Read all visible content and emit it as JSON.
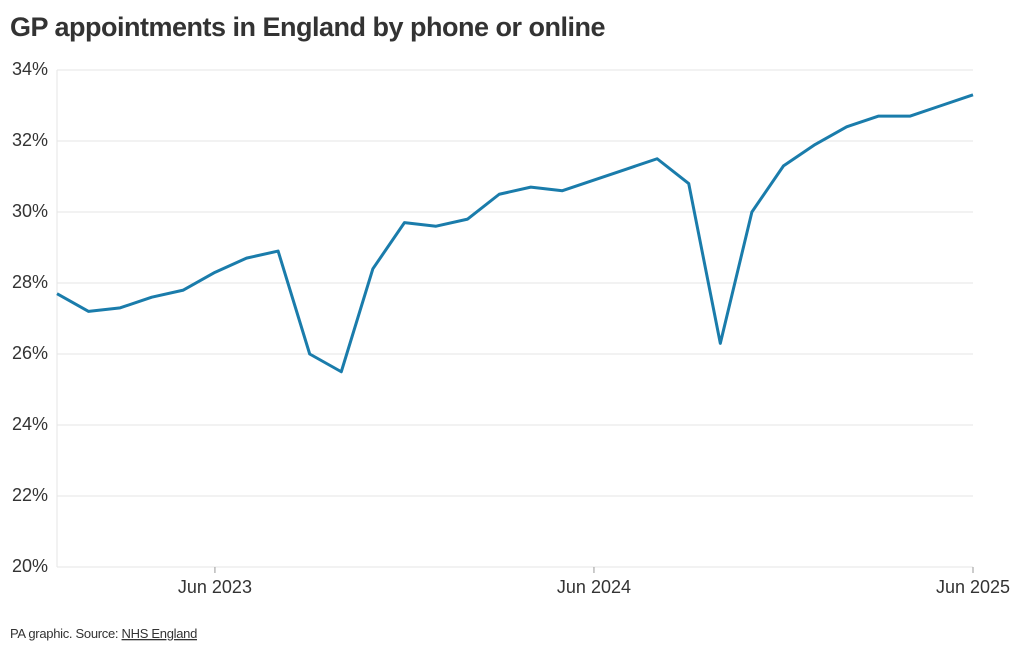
{
  "chart_data": {
    "type": "line",
    "title": "GP appointments in England by phone or online",
    "x": [
      "2023-01",
      "2023-02",
      "2023-03",
      "2023-04",
      "2023-05",
      "2023-06",
      "2023-07",
      "2023-08",
      "2023-09",
      "2023-10",
      "2023-11",
      "2023-12",
      "2024-01",
      "2024-02",
      "2024-03",
      "2024-04",
      "2024-05",
      "2024-06",
      "2024-07",
      "2024-08",
      "2024-09",
      "2024-10",
      "2024-11",
      "2024-12",
      "2025-01",
      "2025-02",
      "2025-03",
      "2025-04",
      "2025-05",
      "2025-06"
    ],
    "series": [
      {
        "name": "Phone or online",
        "color": "#1a7cab",
        "values": [
          27.7,
          27.2,
          27.3,
          27.6,
          27.8,
          28.3,
          28.7,
          28.9,
          26.0,
          25.5,
          28.4,
          29.7,
          29.6,
          29.8,
          30.5,
          30.7,
          30.6,
          30.9,
          31.2,
          31.5,
          30.8,
          26.3,
          30.0,
          31.3,
          31.9,
          32.4,
          32.7,
          32.7,
          33.0,
          33.3
        ]
      }
    ],
    "ylim": [
      20,
      34
    ],
    "yticks": [
      {
        "value": 20,
        "label": "20%"
      },
      {
        "value": 22,
        "label": "22%"
      },
      {
        "value": 24,
        "label": "24%"
      },
      {
        "value": 26,
        "label": "26%"
      },
      {
        "value": 28,
        "label": "28%"
      },
      {
        "value": 30,
        "label": "30%"
      },
      {
        "value": 32,
        "label": "32%"
      },
      {
        "value": 34,
        "label": "34%"
      }
    ],
    "xticks": [
      {
        "value": "2023-06",
        "label": "Jun 2023"
      },
      {
        "value": "2024-06",
        "label": "Jun 2024"
      },
      {
        "value": "2025-06",
        "label": "Jun 2025"
      }
    ],
    "grid": true,
    "source": "PA graphic. Source:",
    "source_link": "NHS England"
  }
}
